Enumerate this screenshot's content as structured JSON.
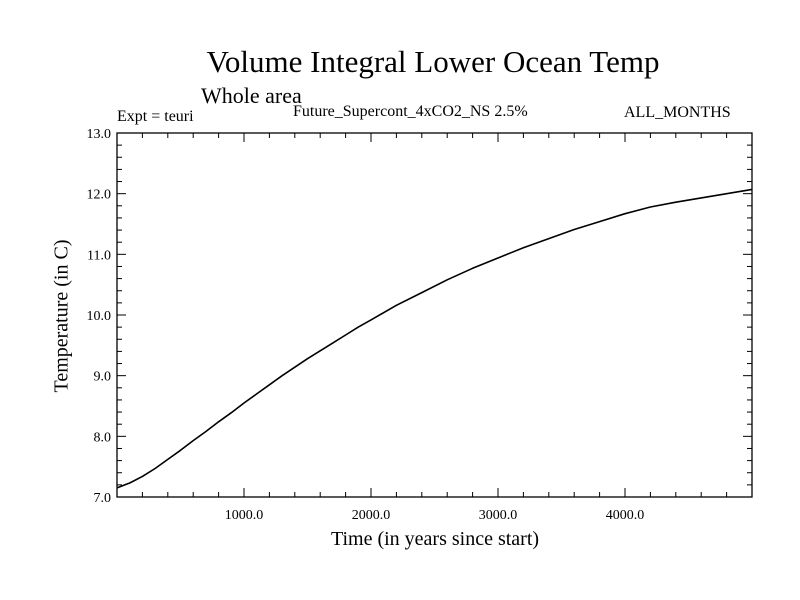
{
  "chart_data": {
    "type": "line",
    "title": "Volume Integral Lower Ocean Temp",
    "subtitle": "Whole area",
    "left_label": "Expt = teuri",
    "center_label": "Future_Supercont_4xCO2_NS 2.5%",
    "right_label": "ALL_MONTHS",
    "xlabel": "Time (in years since start)",
    "ylabel": "Temperature (in C)",
    "xlim": [
      0,
      5000
    ],
    "ylim": [
      7.0,
      13.0
    ],
    "x_ticks": [
      1000,
      2000,
      3000,
      4000
    ],
    "x_tick_labels": [
      "1000.0",
      "2000.0",
      "3000.0",
      "4000.0"
    ],
    "y_ticks": [
      7.0,
      8.0,
      9.0,
      10.0,
      11.0,
      12.0,
      13.0
    ],
    "y_tick_labels": [
      "7.0",
      "8.0",
      "9.0",
      "10.0",
      "11.0",
      "12.0",
      "13.0"
    ],
    "grid": false,
    "series": [
      {
        "color": "#000000",
        "x": [
          0,
          100,
          200,
          300,
          400,
          500,
          600,
          700,
          800,
          900,
          1000,
          1100,
          1200,
          1300,
          1400,
          1500,
          1600,
          1700,
          1800,
          1900,
          2000,
          2200,
          2400,
          2600,
          2800,
          3000,
          3200,
          3400,
          3600,
          3800,
          4000,
          4200,
          4400,
          4600,
          4800,
          5000
        ],
        "y": [
          7.15,
          7.23,
          7.34,
          7.47,
          7.62,
          7.77,
          7.93,
          8.08,
          8.24,
          8.39,
          8.55,
          8.7,
          8.85,
          9.0,
          9.14,
          9.28,
          9.41,
          9.54,
          9.67,
          9.8,
          9.92,
          10.16,
          10.37,
          10.58,
          10.77,
          10.94,
          11.11,
          11.26,
          11.41,
          11.54,
          11.67,
          11.78,
          11.86,
          11.93,
          12.0,
          12.07
        ]
      }
    ]
  }
}
